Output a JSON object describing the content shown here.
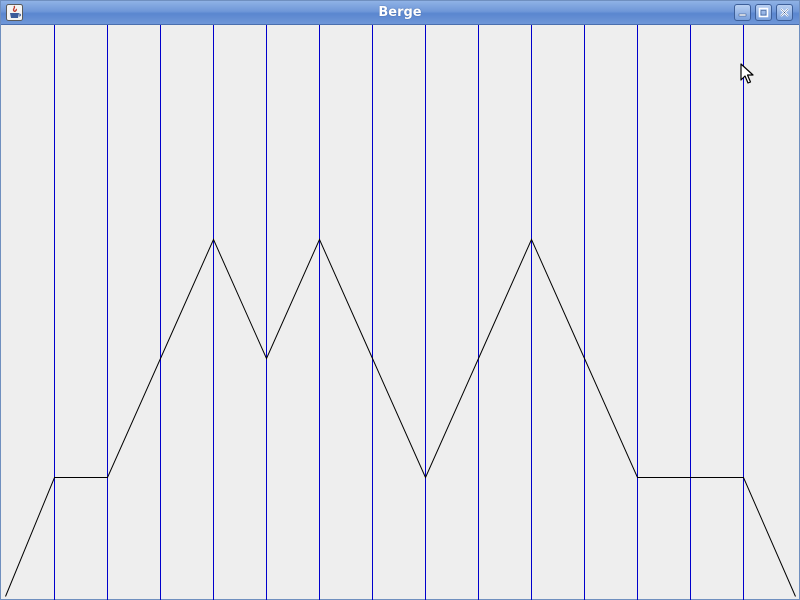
{
  "window": {
    "title": "Berge",
    "controls": {
      "minimize": "minimize-icon",
      "maximize": "maximize-icon",
      "close": "close-icon"
    }
  },
  "colors": {
    "background": "#eeeeee",
    "grid_line": "#0000cc",
    "profile_line": "#000000",
    "titlebar": "#6f97d8"
  },
  "drawing": {
    "columns": 15,
    "heights": [
      0,
      1,
      1,
      2,
      3,
      2,
      3,
      2,
      1,
      2,
      3,
      2,
      1,
      1,
      1,
      0
    ]
  }
}
